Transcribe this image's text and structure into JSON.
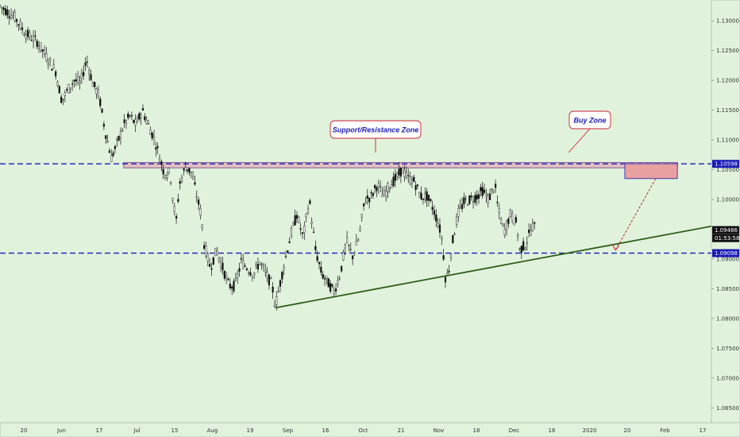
{
  "chart_data": {
    "type": "candlestick",
    "x_tick_labels": [
      "20",
      "Jun",
      "17",
      "Jul",
      "15",
      "Aug",
      "19",
      "Sep",
      "16",
      "Oct",
      "21",
      "Nov",
      "18",
      "Dec",
      "16",
      "2020",
      "20",
      "Feb",
      "17"
    ],
    "y_tick_labels": [
      "1.13000",
      "1.12500",
      "1.12000",
      "1.11500",
      "1.11000",
      "1.10500",
      "1.10000",
      "1.09500",
      "1.09000",
      "1.08500",
      "1.08000",
      "1.07500",
      "1.07000",
      "1.06500"
    ],
    "y_ticks": [
      1.13,
      1.125,
      1.12,
      1.115,
      1.11,
      1.105,
      1.1,
      1.095,
      1.09,
      1.085,
      1.08,
      1.075,
      1.07,
      1.065
    ],
    "ylim": [
      1.0625,
      1.1335
    ],
    "price_path": [
      [
        0,
        1.1325
      ],
      [
        5,
        1.1305
      ],
      [
        8,
        1.128
      ],
      [
        12,
        1.1265
      ],
      [
        15,
        1.124
      ],
      [
        18,
        1.1215
      ],
      [
        20,
        1.1165
      ],
      [
        22,
        1.1185
      ],
      [
        24,
        1.12
      ],
      [
        26,
        1.1195
      ],
      [
        28,
        1.1235
      ],
      [
        30,
        1.1195
      ],
      [
        32,
        1.1175
      ],
      [
        34,
        1.1115
      ],
      [
        36,
        1.107
      ],
      [
        38,
        1.1095
      ],
      [
        40,
        1.1125
      ],
      [
        42,
        1.114
      ],
      [
        44,
        1.1125
      ],
      [
        46,
        1.115
      ],
      [
        48,
        1.1125
      ],
      [
        50,
        1.11
      ],
      [
        52,
        1.1065
      ],
      [
        53,
        1.1045
      ],
      [
        55,
        1.1045
      ],
      [
        56,
        1.0995
      ],
      [
        57,
        1.0965
      ],
      [
        58,
        1.1025
      ],
      [
        60,
        1.1055
      ],
      [
        62,
        1.1045
      ],
      [
        63,
        1.102
      ],
      [
        65,
        1.0975
      ],
      [
        66,
        1.0925
      ],
      [
        68,
        1.0885
      ],
      [
        70,
        1.0915
      ],
      [
        72,
        1.0885
      ],
      [
        74,
        1.0855
      ],
      [
        76,
        1.0855
      ],
      [
        78,
        1.0895
      ],
      [
        80,
        1.0885
      ],
      [
        82,
        1.0875
      ],
      [
        84,
        1.0895
      ],
      [
        86,
        1.0875
      ],
      [
        88,
        1.0855
      ],
      [
        89,
        1.082
      ],
      [
        90,
        1.0845
      ],
      [
        92,
        1.0895
      ],
      [
        94,
        1.094
      ],
      [
        96,
        1.0975
      ],
      [
        98,
        1.0935
      ],
      [
        100,
        1.1
      ],
      [
        102,
        1.0915
      ],
      [
        104,
        1.0875
      ],
      [
        106,
        1.086
      ],
      [
        108,
        1.0845
      ],
      [
        110,
        1.0875
      ],
      [
        112,
        1.093
      ],
      [
        114,
        1.0905
      ],
      [
        116,
        1.0935
      ],
      [
        118,
        1.1
      ],
      [
        120,
        1.1005
      ],
      [
        122,
        1.1025
      ],
      [
        124,
        1.1005
      ],
      [
        126,
        1.1025
      ],
      [
        128,
        1.1035
      ],
      [
        130,
        1.105
      ],
      [
        132,
        1.1035
      ],
      [
        134,
        1.103
      ],
      [
        136,
        1.1005
      ],
      [
        138,
        1.1005
      ],
      [
        140,
        1.0985
      ],
      [
        142,
        1.0955
      ],
      [
        143,
        1.093
      ],
      [
        144,
        1.087
      ],
      [
        145,
        1.0875
      ],
      [
        146,
        1.092
      ],
      [
        148,
        1.0975
      ],
      [
        150,
        1.0995
      ],
      [
        152,
        1.1
      ],
      [
        154,
        1.1005
      ],
      [
        156,
        1.1015
      ],
      [
        158,
        1.1
      ],
      [
        160,
        1.1025
      ],
      [
        161,
        1.0985
      ],
      [
        163,
        1.0945
      ],
      [
        165,
        1.0975
      ],
      [
        167,
        1.096
      ],
      [
        168,
        1.0915
      ],
      [
        170,
        1.0925
      ],
      [
        172,
        1.0955
      ],
      [
        173,
        1.0953
      ]
    ],
    "x_span": [
      0,
      230
    ],
    "support_resistance_zone": [
      1.1053,
      1.1062
    ],
    "dashed_levels": [
      1.10598,
      1.09098
    ],
    "buy_zone": [
      1.1035,
      1.106
    ],
    "trendline": [
      [
        89,
        1.0818
      ],
      [
        230,
        1.0955
      ]
    ],
    "annotations": [
      "Support/Resistance Zone",
      "Buy Zone"
    ],
    "price_tags": [
      {
        "value": 1.10598,
        "label": "1.10598",
        "bg": "#1a1ab8",
        "fg": "#ffffff"
      },
      {
        "value": 1.09486,
        "label": "1.09486",
        "bg": "#111111",
        "fg": "#ffffff"
      },
      {
        "value": 1.0935,
        "label": "01:53:58",
        "bg": "#111111",
        "fg": "#ffffff"
      },
      {
        "value": 1.09098,
        "label": "1.09098",
        "bg": "#1a1ab8",
        "fg": "#ffffff"
      }
    ],
    "colors": {
      "background": "#e0f2dc",
      "candles": "#111111",
      "levels": "#1a1ab8",
      "zone": "#e0a0a8",
      "trend": "#2e5e1a",
      "arrow": "#cc2030"
    }
  }
}
